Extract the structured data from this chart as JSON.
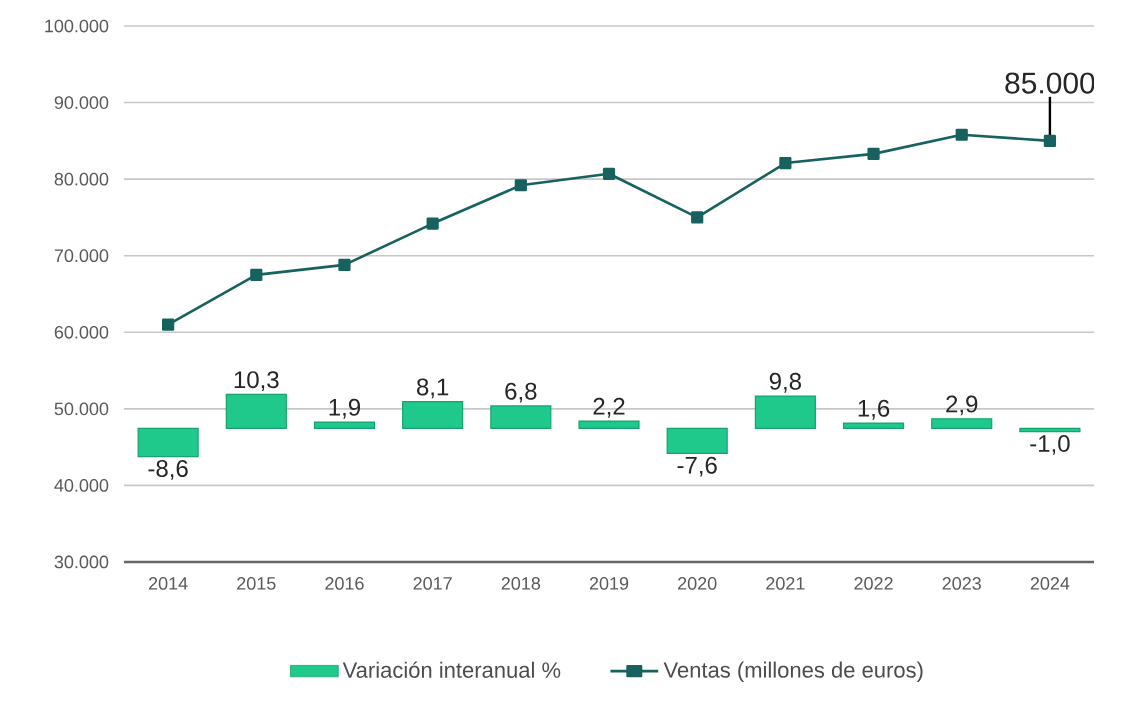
{
  "chart_data": {
    "type": "line",
    "categories": [
      "2014",
      "2015",
      "2016",
      "2017",
      "2018",
      "2019",
      "2020",
      "2021",
      "2022",
      "2023",
      "2024"
    ],
    "series": [
      {
        "name": "Variación interanual %",
        "type": "bar",
        "axis": "y2",
        "color": "#1fc98c",
        "values": [
          -8.6,
          10.3,
          1.9,
          8.1,
          6.8,
          2.2,
          -7.6,
          9.8,
          1.6,
          2.9,
          -1.0
        ],
        "value_labels": [
          "-8,6",
          "10,3",
          "1,9",
          "8,1",
          "6,8",
          "2,2",
          "-7,6",
          "9,8",
          "1,6",
          "2,9",
          "-1,0"
        ]
      },
      {
        "name": "Ventas (millones de euros)",
        "color": "#17625f",
        "marker": "square",
        "line_style": "solid",
        "values": [
          61000,
          67500,
          68800,
          74200,
          79200,
          80700,
          75000,
          82100,
          83300,
          85800,
          85000
        ]
      }
    ],
    "ylim": [
      30000,
      100000
    ],
    "yticks": [
      {
        "value": 30000,
        "label": "30.000"
      },
      {
        "value": 40000,
        "label": "40.000"
      },
      {
        "value": 50000,
        "label": "50.000"
      },
      {
        "value": 60000,
        "label": "60.000"
      },
      {
        "value": 70000,
        "label": "70.000"
      },
      {
        "value": 80000,
        "label": "80.000"
      },
      {
        "value": 90000,
        "label": "90.000"
      },
      {
        "value": 100000,
        "label": "100.000"
      }
    ],
    "y2lim": [
      -40.6,
      122.2
    ],
    "annotations": [
      {
        "text": "85.000",
        "x": "2024",
        "y": 85000
      }
    ],
    "grid": "y",
    "legend": "bottom"
  }
}
